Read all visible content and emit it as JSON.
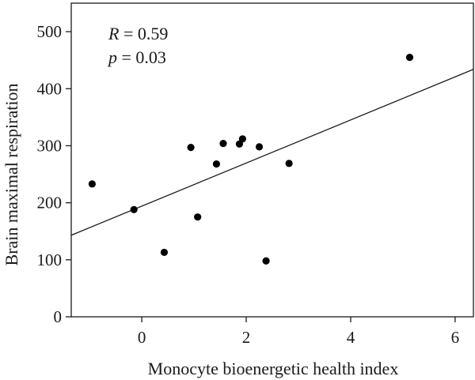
{
  "chart_data": {
    "type": "scatter",
    "xlabel": "Monocyte bioenergetic health index",
    "ylabel": "Brain maximal respiration",
    "xlim": [
      -1.35,
      6.35
    ],
    "ylim": [
      0,
      550
    ],
    "xticks": [
      0,
      2,
      4,
      6
    ],
    "yticks": [
      0,
      100,
      200,
      300,
      400,
      500
    ],
    "grid": false,
    "points": [
      {
        "x": -0.95,
        "y": 233
      },
      {
        "x": -0.15,
        "y": 188
      },
      {
        "x": 0.43,
        "y": 113
      },
      {
        "x": 0.94,
        "y": 297
      },
      {
        "x": 1.07,
        "y": 175
      },
      {
        "x": 1.43,
        "y": 268
      },
      {
        "x": 1.56,
        "y": 304
      },
      {
        "x": 1.87,
        "y": 303
      },
      {
        "x": 1.93,
        "y": 312
      },
      {
        "x": 2.25,
        "y": 298
      },
      {
        "x": 2.38,
        "y": 98
      },
      {
        "x": 2.82,
        "y": 269
      },
      {
        "x": 5.13,
        "y": 455
      }
    ],
    "fit_line": {
      "x": [
        -1.35,
        6.35
      ],
      "y": [
        143,
        434
      ]
    },
    "annotations": [
      {
        "italic": "R",
        "text": " = 0.59"
      },
      {
        "italic": "p",
        "text": " = 0.03"
      }
    ]
  }
}
